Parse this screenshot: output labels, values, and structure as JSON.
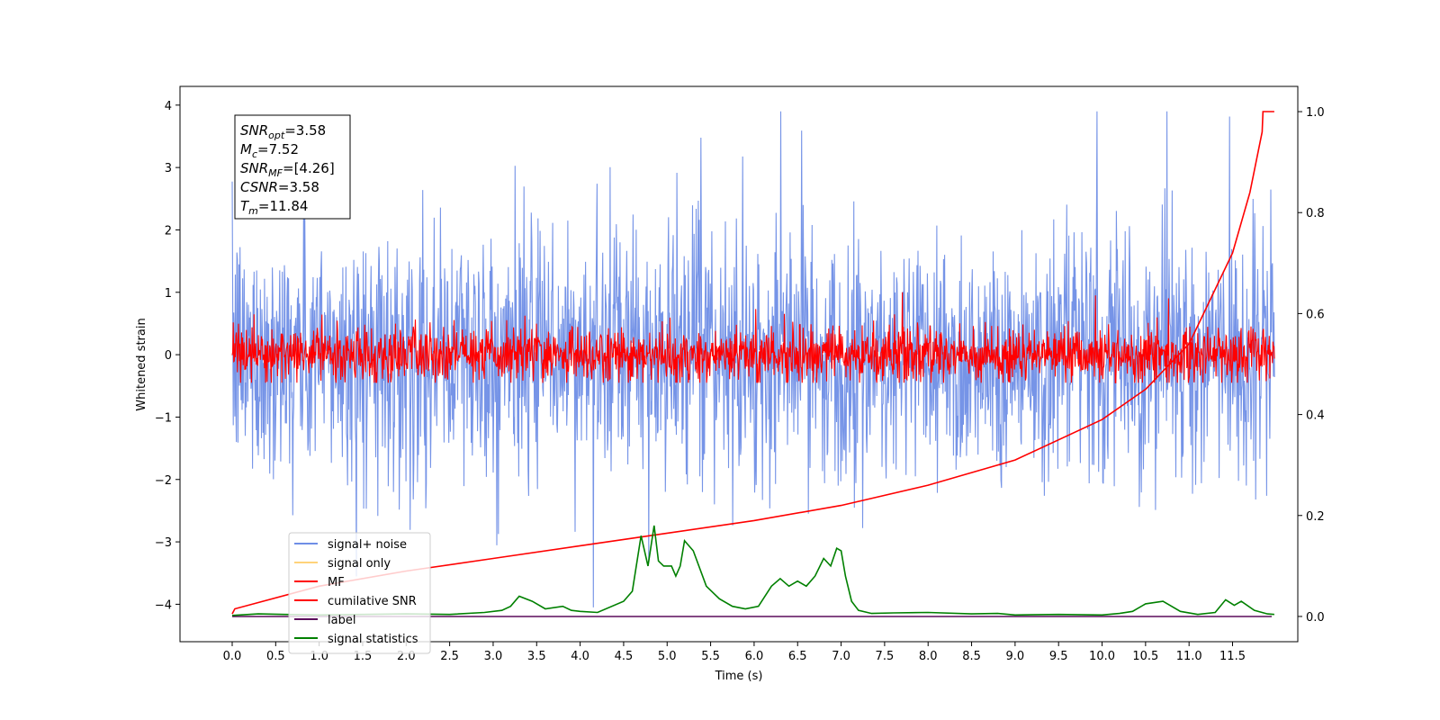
{
  "chart_data": {
    "type": "line",
    "xlabel": "Time (s)",
    "ylabel": "Whitened strain",
    "xlim": [
      -0.6,
      12.25
    ],
    "ylim": [
      -4.6,
      4.3
    ],
    "y2lim": [
      -0.05,
      1.05
    ],
    "xticks": [
      "0.0",
      "0.5",
      "1.0",
      "1.5",
      "2.0",
      "2.5",
      "3.0",
      "3.5",
      "4.0",
      "4.5",
      "5.0",
      "5.5",
      "6.0",
      "6.5",
      "7.0",
      "7.5",
      "8.0",
      "8.5",
      "9.0",
      "9.5",
      "10.0",
      "10.5",
      "11.0",
      "11.5"
    ],
    "yticks": [
      "4",
      "3",
      "2",
      "1",
      "0",
      "−1",
      "−2",
      "−3",
      "−4"
    ],
    "y2ticks": [
      "1.0",
      "0.8",
      "0.6",
      "0.4",
      "0.2",
      "0.0"
    ],
    "legend_position": "lower-left",
    "colors": {
      "signal_noise": "#6f8ee6",
      "signal_only": "#ffd37a",
      "mf": "#ff0000",
      "cumulative_snr": "#ff0000",
      "label": "#5a0a5a",
      "signal_statistics": "#008000"
    },
    "series": [
      {
        "name": "signal+ noise",
        "axis": "left",
        "style": "noise",
        "amplitude": 2.0,
        "spike_max": 3.9,
        "spike_min": -4.05
      },
      {
        "name": "signal only",
        "axis": "left",
        "values": []
      },
      {
        "name": "MF",
        "axis": "left",
        "style": "noise",
        "amplitude": 0.45,
        "spike_max": 1.0,
        "spike_min": -0.45
      },
      {
        "name": "cumilative SNR",
        "axis": "right",
        "x": [
          0.0,
          0.03,
          1.0,
          2.0,
          3.0,
          4.0,
          5.0,
          6.0,
          7.0,
          8.0,
          9.0,
          10.0,
          10.5,
          11.0,
          11.5,
          11.7,
          11.84,
          11.85,
          11.98
        ],
        "values": [
          0.005,
          0.015,
          0.06,
          0.09,
          0.115,
          0.14,
          0.165,
          0.19,
          0.22,
          0.26,
          0.31,
          0.39,
          0.45,
          0.54,
          0.72,
          0.84,
          0.96,
          1.0,
          1.0
        ]
      },
      {
        "name": "label",
        "axis": "right",
        "x": [
          0.0,
          11.95
        ],
        "values": [
          0.0,
          0.0
        ]
      },
      {
        "name": "signal statistics",
        "axis": "right",
        "x": [
          0.0,
          0.3,
          0.6,
          1.0,
          1.5,
          2.0,
          2.5,
          2.9,
          3.1,
          3.2,
          3.3,
          3.45,
          3.6,
          3.8,
          3.9,
          4.0,
          4.2,
          4.5,
          4.6,
          4.7,
          4.78,
          4.85,
          4.9,
          4.96,
          5.05,
          5.1,
          5.15,
          5.2,
          5.3,
          5.45,
          5.6,
          5.75,
          5.9,
          6.05,
          6.2,
          6.3,
          6.4,
          6.5,
          6.6,
          6.7,
          6.8,
          6.88,
          6.95,
          7.0,
          7.05,
          7.12,
          7.2,
          7.35,
          7.6,
          8.0,
          8.5,
          8.8,
          9.0,
          9.5,
          10.0,
          10.2,
          10.35,
          10.5,
          10.7,
          10.9,
          11.1,
          11.3,
          11.42,
          11.52,
          11.6,
          11.75,
          11.9,
          11.98
        ],
        "values": [
          0.002,
          0.005,
          0.004,
          0.003,
          0.004,
          0.005,
          0.004,
          0.008,
          0.012,
          0.02,
          0.04,
          0.03,
          0.015,
          0.02,
          0.012,
          0.01,
          0.008,
          0.03,
          0.05,
          0.16,
          0.1,
          0.18,
          0.11,
          0.1,
          0.1,
          0.08,
          0.1,
          0.15,
          0.13,
          0.06,
          0.035,
          0.02,
          0.015,
          0.02,
          0.06,
          0.075,
          0.06,
          0.07,
          0.06,
          0.08,
          0.115,
          0.1,
          0.135,
          0.13,
          0.08,
          0.03,
          0.012,
          0.006,
          0.007,
          0.008,
          0.005,
          0.006,
          0.003,
          0.004,
          0.003,
          0.006,
          0.01,
          0.025,
          0.03,
          0.01,
          0.004,
          0.008,
          0.033,
          0.022,
          0.03,
          0.012,
          0.005,
          0.004
        ]
      }
    ],
    "annotation": {
      "lines": [
        {
          "name": "SNR",
          "sub": "opt",
          "value": "=3.58"
        },
        {
          "name": "M",
          "sub": "c",
          "value": "=7.52"
        },
        {
          "name": "SNR",
          "sub": "MF",
          "value": "=[4.26]"
        },
        {
          "name": "CSNR",
          "sub": "",
          "value": "=3.58"
        },
        {
          "name": "T",
          "sub": "m",
          "value": "=11.84"
        }
      ]
    }
  }
}
